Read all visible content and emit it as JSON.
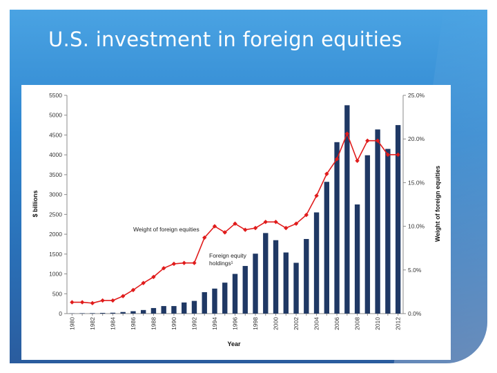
{
  "slide": {
    "title": "U.S. investment in foreign equities"
  },
  "chart_data": {
    "type": "bar",
    "years": [
      1980,
      1981,
      1982,
      1983,
      1984,
      1985,
      1986,
      1987,
      1988,
      1989,
      1990,
      1991,
      1992,
      1993,
      1994,
      1995,
      1996,
      1997,
      1998,
      1999,
      2000,
      2001,
      2002,
      2003,
      2004,
      2005,
      2006,
      2007,
      2008,
      2009,
      2010,
      2011,
      2012
    ],
    "x_tick_labels": [
      "1980",
      "1982",
      "1984",
      "1986",
      "1988",
      "1990",
      "1992",
      "1994",
      "1996",
      "1998",
      "2000",
      "2002",
      "2004",
      "2006",
      "2008",
      "2010",
      "2012"
    ],
    "xlabel": "Year",
    "ylabel": "$ billions",
    "y2label": "Weight of foreign equities",
    "ylim": [
      0,
      5500
    ],
    "y_ticks": [
      "0",
      "500",
      "1000",
      "1500",
      "2000",
      "2500",
      "3000",
      "3500",
      "4000",
      "4500",
      "5000",
      "5500"
    ],
    "y2lim": [
      0,
      25
    ],
    "y2_ticks": [
      "0.0%",
      "5.0%",
      "10.0%",
      "15.0%",
      "20.0%",
      "25.0%"
    ],
    "series": [
      {
        "name": "Foreign equity holdings¹",
        "type": "bar",
        "color": "#1f3864",
        "values": [
          5,
          10,
          12,
          18,
          22,
          40,
          60,
          90,
          140,
          190,
          190,
          280,
          320,
          540,
          630,
          780,
          1000,
          1200,
          1510,
          2030,
          1850,
          1540,
          1280,
          1880,
          2550,
          3320,
          4320,
          5250,
          2750,
          3990,
          4640,
          4150,
          4750
        ]
      },
      {
        "name": "Weight of foreign equities",
        "type": "line",
        "axis": "secondary",
        "color": "#e01b1b",
        "values": [
          1.3,
          1.3,
          1.2,
          1.5,
          1.5,
          2.0,
          2.7,
          3.5,
          4.2,
          5.2,
          5.7,
          5.8,
          5.8,
          8.7,
          10.0,
          9.3,
          10.3,
          9.6,
          9.8,
          10.5,
          10.5,
          9.8,
          10.3,
          11.3,
          13.5,
          16.0,
          17.7,
          20.6,
          17.5,
          19.8,
          19.8,
          18.2,
          18.2
        ]
      }
    ],
    "annotations": [
      {
        "text": "Weight of foreign equities"
      },
      {
        "text": "Foreign equity"
      },
      {
        "text": "holdings¹"
      }
    ]
  }
}
